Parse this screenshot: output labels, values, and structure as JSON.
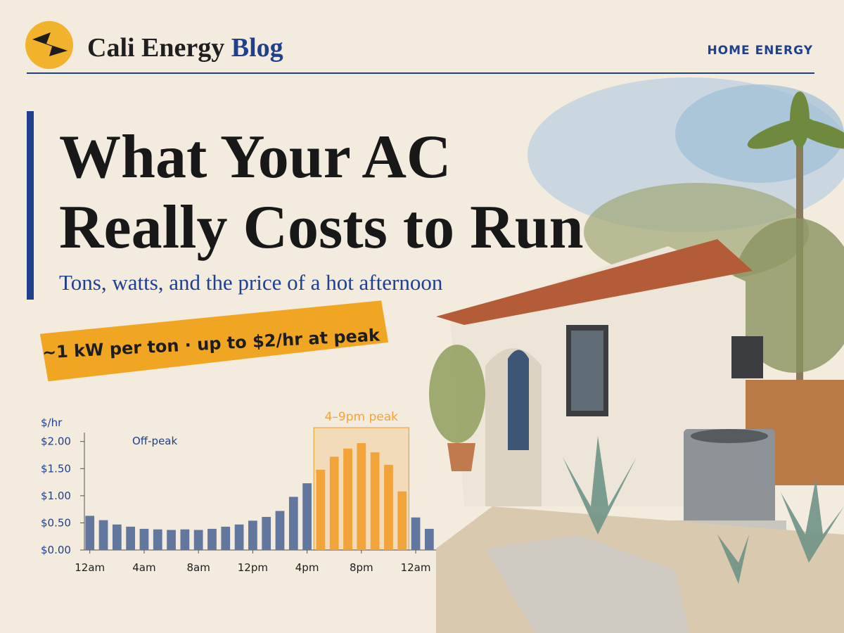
{
  "header": {
    "brand": "Cali Energy ",
    "brand_accent": "Blog",
    "section": "HOME ENERGY"
  },
  "hero": {
    "title_lines": [
      "What Your AC",
      "Really Costs to Run"
    ],
    "subtitle": "Tons, watts, and the price of a hot afternoon",
    "callout": "~1 kW per ton · up to $2/hr at peak"
  },
  "chart_data": {
    "type": "bar",
    "y_label": "$/hr",
    "annotation": "Off-peak",
    "x": [
      0,
      1,
      2,
      3,
      4,
      5,
      6,
      7,
      8,
      9,
      10,
      11,
      12,
      13,
      14,
      15,
      16,
      17,
      18,
      19,
      20,
      21,
      22,
      23,
      24,
      25
    ],
    "values": [
      0.63,
      0.55,
      0.47,
      0.43,
      0.39,
      0.38,
      0.37,
      0.38,
      0.37,
      0.39,
      0.43,
      0.47,
      0.54,
      0.61,
      0.72,
      0.98,
      1.23,
      1.48,
      1.72,
      1.87,
      1.97,
      1.8,
      1.57,
      1.08,
      0.6,
      0.39
    ],
    "color": "#61779e",
    "highlight": {
      "label": "4–9pm peak",
      "from": 16.5,
      "to": 23.5,
      "color": "#f2a43a"
    },
    "xlim": [
      -0.4,
      25.5
    ],
    "xticks": [
      {
        "value": 0,
        "label": "12am"
      },
      {
        "value": 4,
        "label": "4am"
      },
      {
        "value": 8,
        "label": "8am"
      },
      {
        "value": 12,
        "label": "12pm"
      },
      {
        "value": 16,
        "label": "4pm"
      },
      {
        "value": 20,
        "label": "8pm"
      },
      {
        "value": 24,
        "label": "12am"
      }
    ],
    "ylim": [
      0,
      2.1
    ],
    "yticks": [
      {
        "value": 0,
        "label": "$0.00"
      },
      {
        "value": 0.5,
        "label": "$0.50"
      },
      {
        "value": 1,
        "label": "$1.00"
      },
      {
        "value": 1.5,
        "label": "$1.50"
      },
      {
        "value": 2,
        "label": "$2.00"
      }
    ]
  }
}
